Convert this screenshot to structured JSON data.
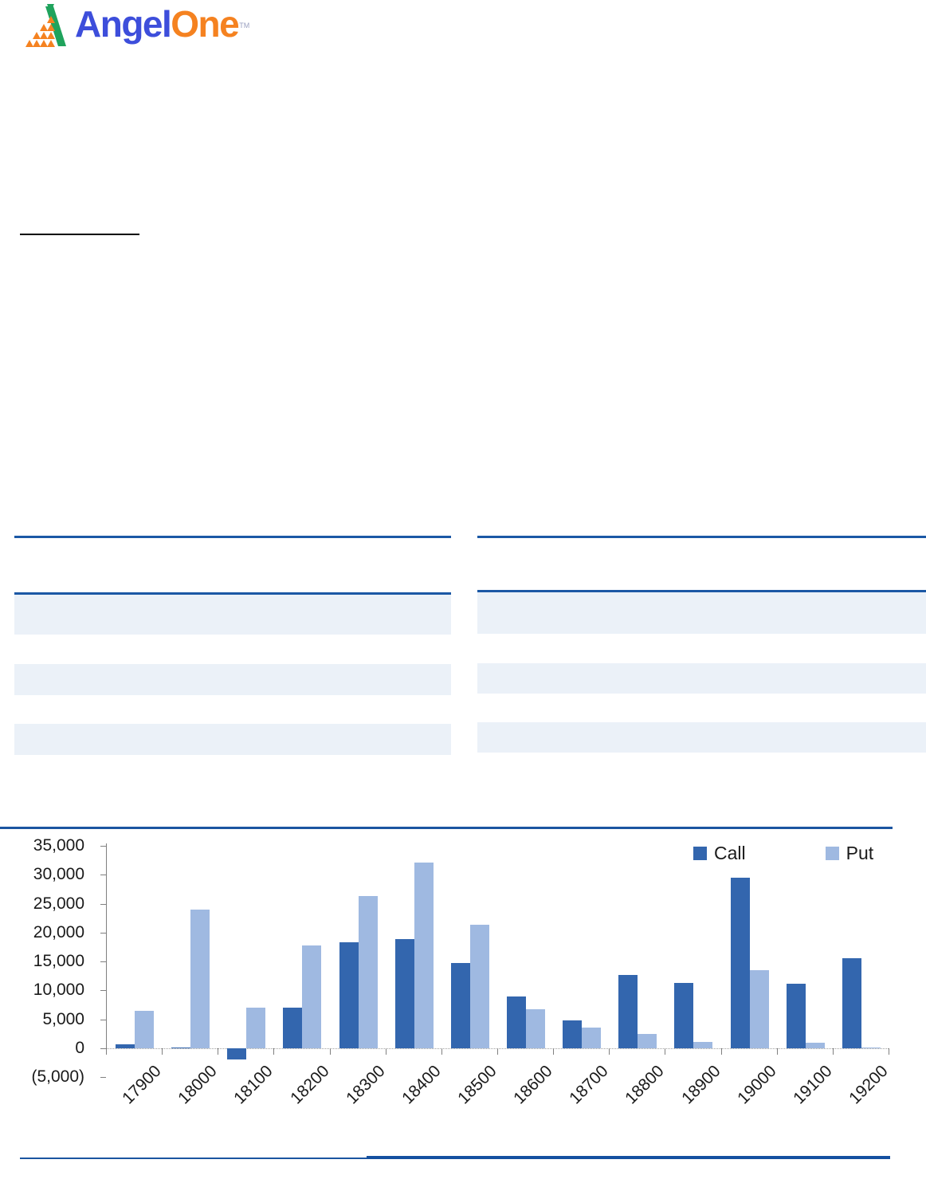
{
  "brand": {
    "name_part1": "Angel",
    "name_part2": "One",
    "trademark": "TM",
    "colors": {
      "blue": "#3d4edb",
      "orange": "#f58220",
      "green": "#1fa35c"
    }
  },
  "colors": {
    "rule_navy": "#1b58a5",
    "row_shade": "#ebf1f8",
    "bar_call": "#3366ae",
    "bar_put": "#9fb9e1"
  },
  "chart_data": {
    "type": "bar",
    "title": "",
    "xlabel": "",
    "ylabel": "",
    "categories": [
      "17900",
      "18000",
      "18100",
      "18200",
      "18300",
      "18400",
      "18500",
      "18600",
      "18700",
      "18800",
      "18900",
      "19000",
      "19100",
      "19200"
    ],
    "series": [
      {
        "name": "Call",
        "values": [
          700,
          200,
          -1900,
          7000,
          18300,
          18900,
          14700,
          9000,
          4800,
          12700,
          11300,
          29500,
          11200,
          15600
        ]
      },
      {
        "name": "Put",
        "values": [
          6500,
          24000,
          7000,
          17800,
          26300,
          32100,
          21300,
          6800,
          3600,
          2500,
          1100,
          13500,
          1000,
          200
        ]
      }
    ],
    "ylim": [
      -5000,
      35000
    ],
    "ytick_step": 5000,
    "ytick_labels": [
      "35,000",
      "30,000",
      "25,000",
      "20,000",
      "15,000",
      "10,000",
      "5,000",
      "0",
      "(5,000)"
    ],
    "ytick_values": [
      35000,
      30000,
      25000,
      20000,
      15000,
      10000,
      5000,
      0,
      -5000
    ],
    "legend": [
      "Call",
      "Put"
    ],
    "legend_position": "top-right",
    "grid": false
  }
}
